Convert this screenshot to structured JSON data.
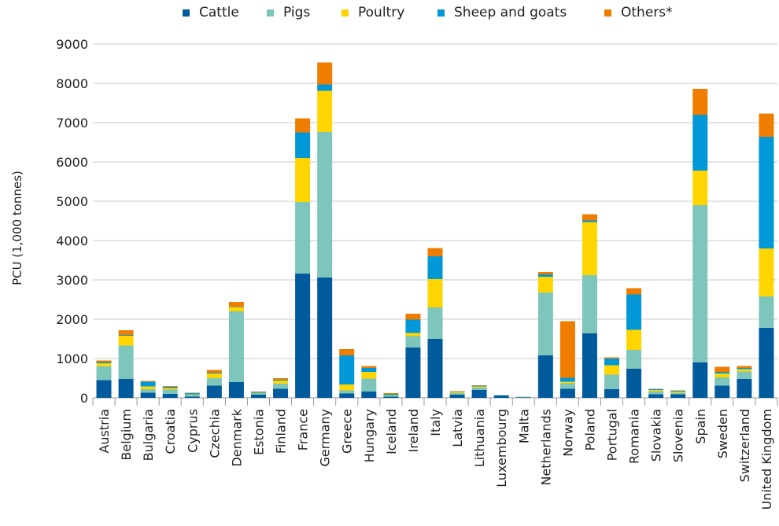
{
  "chart_data": {
    "type": "bar",
    "stacked": true,
    "ylabel": "PCU (1,000 tonnes)",
    "xlabel": "",
    "ylim": [
      0,
      9000
    ],
    "yticks": [
      0,
      1000,
      2000,
      3000,
      4000,
      5000,
      6000,
      7000,
      8000,
      9000
    ],
    "grid": "horizontal",
    "legend_position": "top",
    "categories": [
      "Austria",
      "Belgium",
      "Bulgaria",
      "Croatia",
      "Cyprus",
      "Czechia",
      "Denmark",
      "Estonia",
      "Finland",
      "France",
      "Germany",
      "Greece",
      "Hungary",
      "Iceland",
      "Ireland",
      "Italy",
      "Latvia",
      "Lithuania",
      "Luxembourg",
      "Malta",
      "Netherlands",
      "Norway",
      "Poland",
      "Portugal",
      "Romania",
      "Slovakia",
      "Slovenia",
      "Spain",
      "Sweden",
      "Switzerland",
      "United Kingdom"
    ],
    "series": [
      {
        "name": "Cattle",
        "color": "#005a9c",
        "values": [
          450,
          480,
          130,
          100,
          30,
          310,
          400,
          80,
          230,
          3160,
          3060,
          110,
          160,
          30,
          1280,
          1500,
          80,
          200,
          60,
          10,
          1080,
          230,
          1640,
          220,
          740,
          90,
          90,
          900,
          310,
          480,
          1780
        ]
      },
      {
        "name": "Pigs",
        "color": "#7ec5bb",
        "values": [
          350,
          850,
          90,
          110,
          50,
          190,
          1800,
          40,
          130,
          1820,
          3700,
          80,
          330,
          20,
          290,
          800,
          40,
          60,
          10,
          10,
          1600,
          140,
          1480,
          370,
          480,
          80,
          40,
          4000,
          210,
          190,
          800
        ]
      },
      {
        "name": "Poultry",
        "color": "#ffd500",
        "values": [
          80,
          250,
          70,
          40,
          10,
          120,
          110,
          10,
          80,
          1120,
          1050,
          150,
          170,
          20,
          80,
          720,
          30,
          30,
          0,
          5,
          400,
          40,
          1350,
          240,
          510,
          30,
          30,
          880,
          100,
          60,
          1220
        ]
      },
      {
        "name": "Sheep and goats",
        "color": "#0098d6",
        "values": [
          30,
          20,
          120,
          30,
          30,
          20,
          10,
          20,
          20,
          650,
          160,
          740,
          100,
          30,
          340,
          580,
          10,
          20,
          0,
          5,
          60,
          100,
          40,
          170,
          900,
          20,
          20,
          1420,
          40,
          30,
          2840
        ]
      },
      {
        "name": "Others*",
        "color": "#ef7d00",
        "values": [
          40,
          120,
          20,
          20,
          10,
          70,
          120,
          10,
          40,
          360,
          560,
          160,
          50,
          20,
          150,
          210,
          10,
          10,
          0,
          0,
          60,
          1440,
          160,
          30,
          160,
          10,
          10,
          660,
          130,
          50,
          590
        ]
      }
    ]
  }
}
